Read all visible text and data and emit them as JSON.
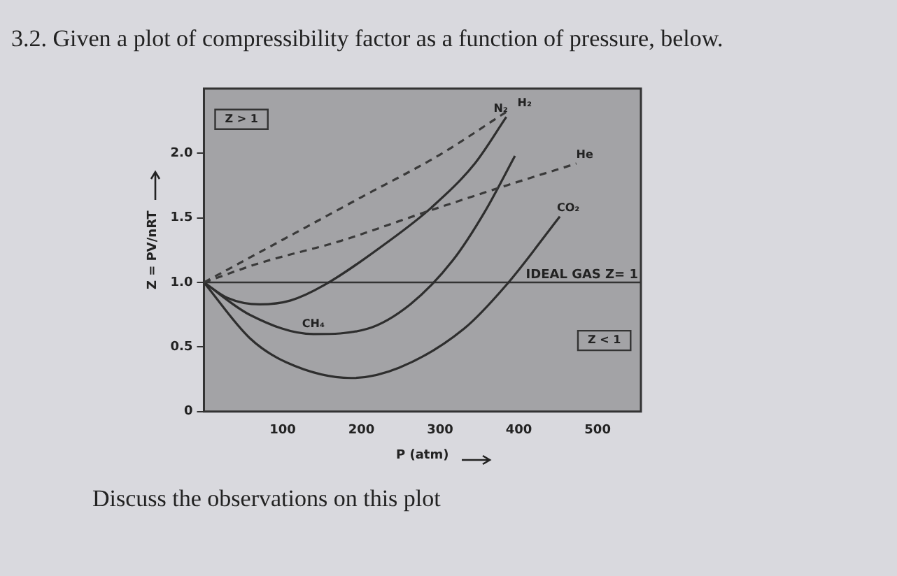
{
  "chart_data": {
    "type": "line",
    "title": "3.2.    Given a plot of compressibility factor as a function of pressure, below.",
    "xlabel": "P (atm)",
    "ylabel": "Z = PV/nRT",
    "xlim": [
      0,
      555
    ],
    "xticks": [
      100,
      200,
      300,
      400,
      500
    ],
    "ylim": [
      0,
      2.5
    ],
    "yticks": [
      {
        "value": 0,
        "label": "0"
      },
      {
        "value": 0.5,
        "label": "0.5"
      },
      {
        "value": 1,
        "label": "1.0"
      },
      {
        "value": 1.5,
        "label": "1.5"
      },
      {
        "value": 2,
        "label": "2.0"
      }
    ],
    "grid": false,
    "legend": false,
    "marker": "none",
    "series": [
      {
        "name": "H₂",
        "color": "#3a3a3a",
        "line_style": "dashed",
        "x": [
          0,
          100,
          200,
          300,
          384
        ],
        "values": [
          1.0,
          1.33,
          1.66,
          1.99,
          2.32
        ]
      },
      {
        "name": "He",
        "color": "#3a3a3a",
        "line_style": "dashed",
        "x": [
          0,
          71,
          173,
          284,
          384,
          473
        ],
        "values": [
          1.0,
          1.15,
          1.32,
          1.55,
          1.75,
          1.92
        ]
      },
      {
        "name": "N₂",
        "color": "#2e2e2e",
        "line_style": "solid",
        "x": [
          0,
          30,
          71,
          110,
          153,
          235,
          289,
          344,
          384
        ],
        "values": [
          1.0,
          0.88,
          0.83,
          0.86,
          0.98,
          1.32,
          1.58,
          1.92,
          2.28
        ]
      },
      {
        "name": "CH₄",
        "color": "#2e2e2e",
        "line_style": "solid",
        "x": [
          0,
          58,
          139,
          207,
          262,
          316,
          357,
          395
        ],
        "values": [
          1.0,
          0.75,
          0.6,
          0.64,
          0.83,
          1.17,
          1.55,
          1.98
        ]
      },
      {
        "name": "CO₂",
        "color": "#2e2e2e",
        "line_style": "solid",
        "x": [
          0,
          58,
          105,
          187,
          248,
          330,
          384,
          452
        ],
        "values": [
          1.0,
          0.57,
          0.38,
          0.26,
          0.34,
          0.64,
          0.98,
          1.51
        ]
      }
    ],
    "ref_lines": [
      {
        "axis": "y",
        "value": 1,
        "label": "IDEAL GAS Z= 1",
        "color": "#333333"
      }
    ],
    "annotations": [
      "Z > 1",
      "Z < 1",
      "Discuss the observations on this plot"
    ]
  }
}
